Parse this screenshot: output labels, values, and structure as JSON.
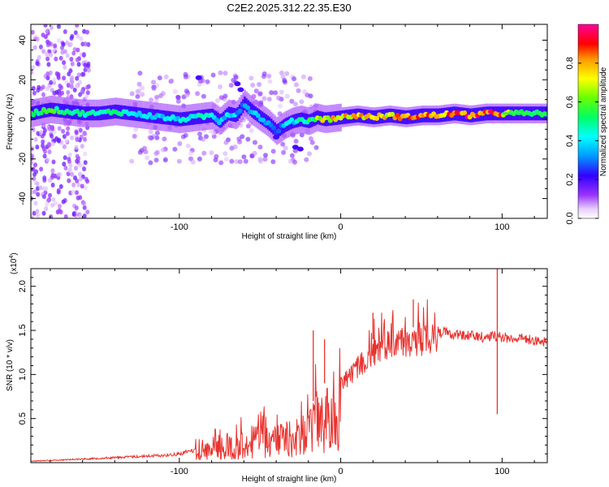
{
  "title": "C2E2.2025.312.22.35.E30",
  "chart_data": [
    {
      "type": "heatmap",
      "title": "C2E2.2025.312.22.35.E30",
      "xlabel": "Height of straight line (km)",
      "ylabel": "Frequency (Hz)",
      "xlim": [
        -192,
        128
      ],
      "ylim": [
        -50,
        48
      ],
      "xticks": [
        -100,
        0,
        100
      ],
      "xtick_labels": [
        "-100",
        "0",
        "100"
      ],
      "yticks": [
        40,
        20,
        0,
        -20,
        -40
      ],
      "ytick_labels": [
        "40",
        "20",
        "0",
        "-20",
        "-40"
      ],
      "colorbar": {
        "label": "Normalized spectral amplitude",
        "range": [
          0,
          1
        ],
        "ticks": [
          0.0,
          0.2,
          0.4,
          0.6,
          0.8
        ],
        "tick_labels": [
          "0.0",
          "0.2",
          "0.4",
          "0.6",
          "0.8"
        ]
      },
      "ridge": {
        "x": [
          -192,
          -180,
          -170,
          -160,
          -150,
          -140,
          -130,
          -120,
          -110,
          -100,
          -90,
          -80,
          -75,
          -70,
          -65,
          -60,
          -55,
          -50,
          -45,
          -40,
          -35,
          -30,
          -25,
          -20,
          -15,
          -10,
          0,
          10,
          20,
          30,
          40,
          50,
          60,
          70,
          80,
          90,
          100,
          110,
          128
        ],
        "frequency": [
          3,
          5,
          4,
          3,
          3,
          4,
          3,
          2,
          1,
          0,
          1,
          2,
          -1,
          3,
          2,
          8,
          4,
          1,
          -2,
          -6,
          -3,
          -1,
          0,
          -1,
          1,
          0,
          1,
          2,
          1,
          2,
          1,
          2,
          2,
          3,
          2,
          3,
          3,
          3,
          3
        ],
        "amplitude": [
          0.5,
          0.55,
          0.5,
          0.45,
          0.45,
          0.5,
          0.45,
          0.4,
          0.4,
          0.4,
          0.45,
          0.4,
          0.35,
          0.4,
          0.35,
          0.3,
          0.35,
          0.35,
          0.3,
          0.25,
          0.35,
          0.4,
          0.45,
          0.5,
          0.6,
          0.7,
          0.75,
          0.75,
          0.7,
          0.75,
          0.8,
          0.8,
          0.8,
          0.85,
          0.9,
          0.9,
          0.8,
          0.5,
          0.5
        ]
      }
    },
    {
      "type": "line",
      "xlabel": "Height of straight line (km)",
      "ylabel": "SNR (10 * v/v)",
      "scale_label_base": "(x10",
      "scale_label_exp": "4",
      "scale_label_end": ")",
      "xlim": [
        -192,
        128
      ],
      "ylim": [
        0,
        2.2
      ],
      "xticks": [
        -100,
        0,
        100
      ],
      "xtick_labels": [
        "-100",
        "0",
        "100"
      ],
      "yticks": [
        0.5,
        1.0,
        1.5,
        2.0
      ],
      "ytick_labels": [
        "0.5",
        "1.0",
        "1.5",
        "2.0"
      ],
      "series": [
        {
          "name": "SNR",
          "color": "#e8322e",
          "envelope_x": [
            -192,
            -170,
            -150,
            -130,
            -110,
            -100,
            -90,
            -80,
            -70,
            -60,
            -50,
            -40,
            -30,
            -20,
            -15,
            -10,
            -5,
            0,
            10,
            20,
            30,
            40,
            50,
            55,
            60,
            70,
            80,
            90,
            95,
            100,
            110,
            120,
            128
          ],
          "envelope_y": [
            0.02,
            0.04,
            0.06,
            0.08,
            0.1,
            0.12,
            0.18,
            0.25,
            0.32,
            0.38,
            0.42,
            0.45,
            0.48,
            0.55,
            0.8,
            0.9,
            0.95,
            1.0,
            1.2,
            1.4,
            1.5,
            1.52,
            1.55,
            1.58,
            1.55,
            1.52,
            1.5,
            1.48,
            1.5,
            1.48,
            1.47,
            1.45,
            1.42
          ],
          "spikes": [
            {
              "x": -17,
              "y": 1.5
            },
            {
              "x": -10,
              "y": 1.4
            },
            {
              "x": 20,
              "y": 1.7
            },
            {
              "x": 45,
              "y": 1.85
            },
            {
              "x": 97,
              "y": 2.2
            },
            {
              "x": 97,
              "y": 0.55
            }
          ]
        }
      ]
    }
  ]
}
